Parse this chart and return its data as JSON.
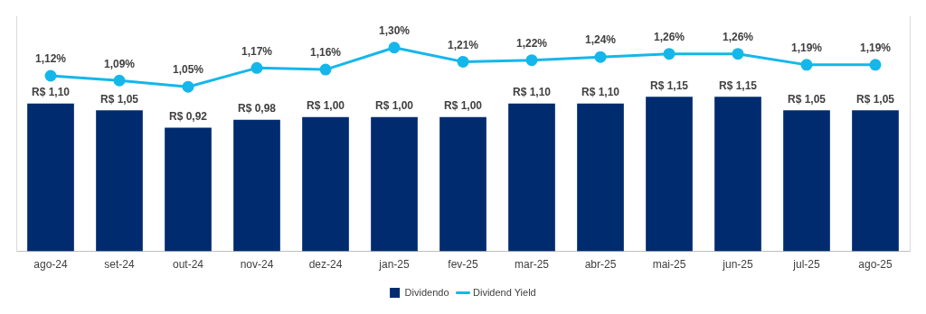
{
  "chart_data": {
    "type": "bar",
    "categories": [
      "ago-24",
      "set-24",
      "out-24",
      "nov-24",
      "dez-24",
      "jan-25",
      "fev-25",
      "mar-25",
      "abr-25",
      "mai-25",
      "jun-25",
      "jul-25",
      "ago-25"
    ],
    "series": [
      {
        "name": "Dividendo",
        "color": "#002b6f",
        "values": [
          1.1,
          1.05,
          0.92,
          0.98,
          1.0,
          1.0,
          1.0,
          1.1,
          1.1,
          1.15,
          1.15,
          1.05,
          1.05
        ],
        "value_labels": [
          "R$ 1,10",
          "R$ 1,05",
          "R$ 0,92",
          "R$ 0,98",
          "R$ 1,00",
          "R$ 1,00",
          "R$ 1,00",
          "R$ 1,10",
          "R$ 1,10",
          "R$ 1,15",
          "R$ 1,15",
          "R$ 1,05",
          "R$ 1,05"
        ]
      },
      {
        "name": "Dividend Yield",
        "type": "line",
        "axis": "y2",
        "color": "#15b7ea",
        "marker": "circle",
        "values": [
          1.12,
          1.09,
          1.05,
          1.17,
          1.16,
          1.3,
          1.21,
          1.22,
          1.24,
          1.26,
          1.26,
          1.19,
          1.19
        ],
        "value_labels": [
          "1,12%",
          "1,09%",
          "1,05%",
          "1,17%",
          "1,16%",
          "1,30%",
          "1,21%",
          "1,22%",
          "1,24%",
          "1,26%",
          "1,26%",
          "1,19%",
          "1,19%"
        ]
      }
    ],
    "ylim": [
      0,
      1.75
    ],
    "y2lim": [
      0,
      1.5
    ],
    "tick_labels": "x",
    "grid": false,
    "legend": "bottom"
  }
}
